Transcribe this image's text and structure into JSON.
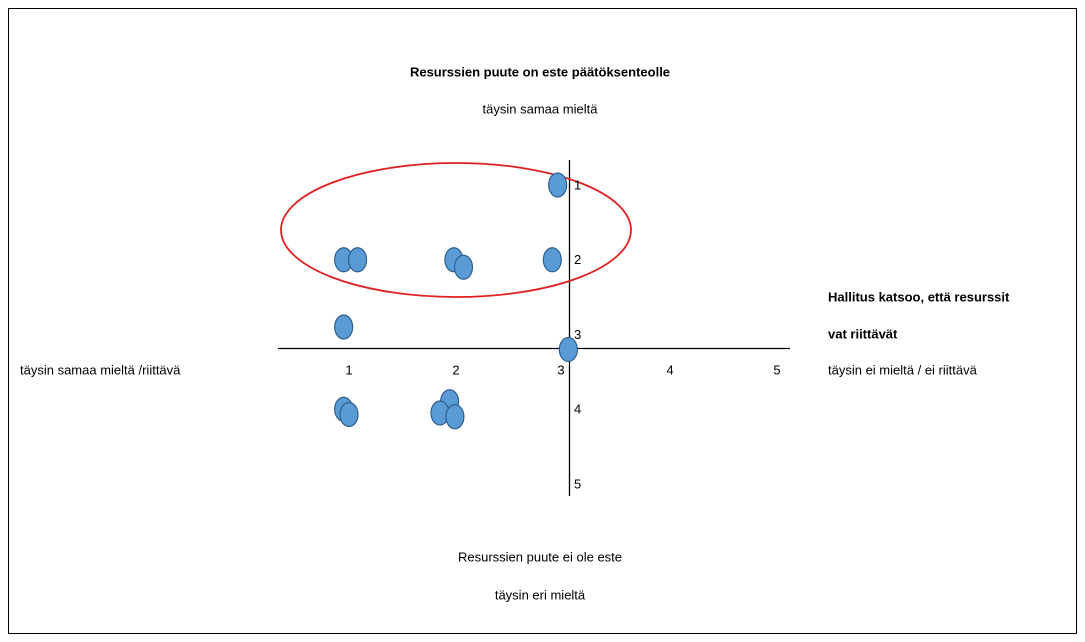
{
  "chart_data": {
    "type": "scatter",
    "title": "Resurssien puute on este päätöksenteolle",
    "top_label": "täysin samaa mieltä",
    "right_title": [
      "Hallitus katsoo, että resurssit",
      "vat riittävät"
    ],
    "right_label": "täysin ei mieltä / ei riittävä",
    "left_label": "täysin samaa mieltä /riittävä",
    "bottom_labels": [
      "Resurssien puute ei ole este",
      "täysin eri mieltä"
    ],
    "xticks": [
      1,
      2,
      3,
      4,
      5
    ],
    "yticks": [
      1,
      2,
      3,
      4,
      5
    ],
    "color": "#5b9bd5",
    "x": [
      2.95,
      0.95,
      1.08,
      1.98,
      2.07,
      2.9,
      0.95,
      3.05,
      0.95,
      1.0,
      1.94,
      1.85,
      1.99
    ],
    "values": [
      1,
      2,
      2,
      2,
      2.1,
      2,
      2.9,
      3.2,
      4.0,
      4.07,
      3.9,
      4.05,
      4.1
    ]
  }
}
